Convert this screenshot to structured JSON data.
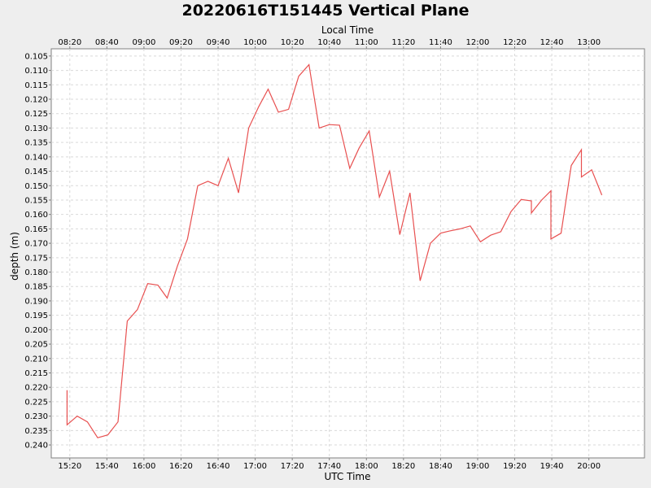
{
  "chart_data": {
    "type": "line",
    "title": "20220616T151445 Vertical Plane",
    "xlabel": "UTC Time",
    "x2label": "Local Time",
    "ylabel": "depth (m)",
    "y_inverted": true,
    "grid": true,
    "legend": "none",
    "colors": {
      "background": "#eeeeee",
      "plot_background": "#ffffff",
      "grid": "#d9d9d9",
      "line": "#e85050",
      "axis": "#808080"
    },
    "xlim": [
      "15:10",
      "20:30"
    ],
    "ylim": [
      0.1025,
      0.2445
    ],
    "x_ticks": [
      "15:20",
      "15:40",
      "16:00",
      "16:20",
      "16:40",
      "17:00",
      "17:20",
      "17:40",
      "18:00",
      "18:20",
      "18:40",
      "19:00",
      "19:20",
      "19:40",
      "20:00"
    ],
    "x2_ticks": [
      "08:20",
      "08:40",
      "09:00",
      "09:20",
      "09:40",
      "10:00",
      "10:20",
      "10:40",
      "11:00",
      "11:20",
      "11:40",
      "12:00",
      "12:20",
      "12:40",
      "13:00"
    ],
    "y_ticks": [
      "0.105",
      "0.110",
      "0.115",
      "0.120",
      "0.125",
      "0.130",
      "0.135",
      "0.140",
      "0.145",
      "0.150",
      "0.155",
      "0.160",
      "0.165",
      "0.170",
      "0.175",
      "0.180",
      "0.185",
      "0.190",
      "0.195",
      "0.200",
      "0.205",
      "0.210",
      "0.215",
      "0.220",
      "0.225",
      "0.230",
      "0.235",
      "0.240"
    ],
    "series": [
      {
        "x": [
          "15:18:30",
          "15:18:30",
          "15:24:00",
          "15:29:30",
          "15:35:00",
          "15:40:30",
          "15:46:00",
          "15:51:00",
          "15:56:30",
          "16:02:00",
          "16:07:30",
          "16:12:30",
          "16:18:00",
          "16:23:30",
          "16:29:00",
          "16:34:30",
          "16:40:00",
          "16:45:30",
          "16:51:00",
          "16:56:30",
          "17:02:00",
          "17:07:00",
          "17:12:30",
          "17:18:00",
          "17:23:30",
          "17:29:00",
          "17:34:30",
          "17:40:00",
          "17:45:30",
          "17:51:00",
          "17:56:00",
          "18:01:30",
          "18:07:00",
          "18:12:30",
          "18:18:00",
          "18:23:30",
          "18:29:00",
          "18:34:30",
          "18:40:00",
          "18:45:00",
          "18:50:30",
          "18:56:00",
          "19:01:30",
          "19:07:00",
          "19:12:30",
          "19:18:00",
          "19:23:30",
          "19:29:00",
          "19:29:00",
          "19:34:30",
          "19:39:30",
          "19:39:30",
          "19:45:00",
          "19:50:30",
          "19:56:00",
          "19:56:00",
          "20:01:30",
          "20:07:00"
        ],
        "y": [
          0.221,
          0.233,
          0.23,
          0.232,
          0.2375,
          0.2365,
          0.232,
          0.197,
          0.193,
          0.184,
          0.1845,
          0.189,
          0.178,
          0.1685,
          0.15,
          0.1485,
          0.15,
          0.1405,
          0.1525,
          0.13,
          0.1225,
          0.1165,
          0.1245,
          0.1235,
          0.112,
          0.108,
          0.13,
          0.1288,
          0.129,
          0.144,
          0.137,
          0.131,
          0.154,
          0.145,
          0.167,
          0.1525,
          0.183,
          0.17,
          0.1665,
          0.1657,
          0.165,
          0.164,
          0.1695,
          0.1672,
          0.166,
          0.159,
          0.1548,
          0.1553,
          0.1595,
          0.155,
          0.1518,
          0.1685,
          0.1665,
          0.143,
          0.1375,
          0.147,
          0.1445,
          0.1533
        ]
      }
    ]
  }
}
